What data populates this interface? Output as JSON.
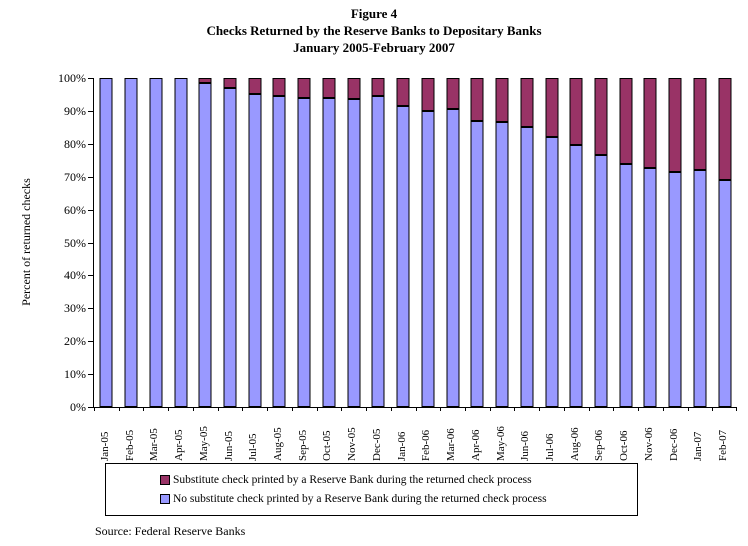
{
  "chart_data": {
    "type": "bar",
    "stacked": true,
    "title_lines": [
      "Figure 4",
      "Checks Returned by the Reserve Banks to Depositary Banks",
      "January 2005-February 2007"
    ],
    "ylabel": "Percent of returned checks",
    "xlabel": "",
    "ylim": [
      0,
      100
    ],
    "grid": false,
    "y_ticks": [
      "100%",
      "90%",
      "80%",
      "70%",
      "60%",
      "50%",
      "40%",
      "30%",
      "20%",
      "10%",
      "0%"
    ],
    "categories": [
      "Jan-05",
      "Feb-05",
      "Mar-05",
      "Apr-05",
      "May-05",
      "Jun-05",
      "Jul-05",
      "Aug-05",
      "Sep-05",
      "Oct-05",
      "Nov-05",
      "Dec-05",
      "Jan-06",
      "Feb-06",
      "Mar-06",
      "Apr-06",
      "May-06",
      "Jun-06",
      "Jul-06",
      "Aug-06",
      "Sep-06",
      "Oct-06",
      "Nov-06",
      "Dec-06",
      "Jan-07",
      "Feb-07"
    ],
    "series": [
      {
        "name": "Substitute check printed by a Reserve Bank during the returned check process",
        "color": "#993366",
        "stack_position": "top",
        "values": [
          0,
          0,
          0,
          0,
          1.5,
          3,
          5,
          5.5,
          6,
          6,
          6.5,
          5.5,
          8.5,
          10,
          9.5,
          13,
          13.5,
          15,
          18,
          20.5,
          23.5,
          26,
          27.5,
          28.5,
          28,
          31
        ]
      },
      {
        "name": "No substitute check printed by a Reserve Bank during the returned check process",
        "color": "#9999FF",
        "stack_position": "bottom",
        "values": [
          100,
          100,
          100,
          100,
          98.5,
          97,
          95,
          94.5,
          94,
          94,
          93.5,
          94.5,
          91.5,
          90,
          90.5,
          87,
          86.5,
          85,
          82,
          79.5,
          76.5,
          74,
          72.5,
          71.5,
          72,
          69
        ]
      }
    ],
    "legend_position": "bottom-boxed",
    "legend_order": [
      0,
      1
    ]
  },
  "source_note": "Source:  Federal Reserve Banks",
  "colors": {
    "substitute": "#993366",
    "no_substitute": "#9999FF",
    "axis": "#000000",
    "background": "#FFFFFF"
  }
}
